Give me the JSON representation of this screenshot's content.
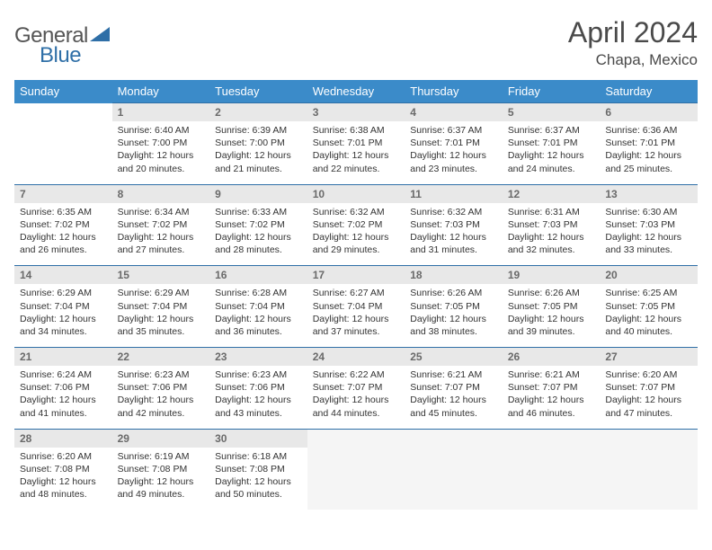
{
  "logo": {
    "part1": "General",
    "part2": "Blue"
  },
  "title": "April 2024",
  "location": "Chapa, Mexico",
  "colors": {
    "header_bg": "#3b8bc9",
    "header_text": "#ffffff",
    "daynum_bg": "#e8e8e8",
    "daynum_text": "#6a6a6a",
    "rule": "#2f6fa7",
    "brand_blue": "#2f6fa7"
  },
  "weekdays": [
    "Sunday",
    "Monday",
    "Tuesday",
    "Wednesday",
    "Thursday",
    "Friday",
    "Saturday"
  ],
  "weeks": [
    [
      null,
      {
        "n": "1",
        "sr": "6:40 AM",
        "ss": "7:00 PM",
        "dl": "12 hours and 20 minutes."
      },
      {
        "n": "2",
        "sr": "6:39 AM",
        "ss": "7:00 PM",
        "dl": "12 hours and 21 minutes."
      },
      {
        "n": "3",
        "sr": "6:38 AM",
        "ss": "7:01 PM",
        "dl": "12 hours and 22 minutes."
      },
      {
        "n": "4",
        "sr": "6:37 AM",
        "ss": "7:01 PM",
        "dl": "12 hours and 23 minutes."
      },
      {
        "n": "5",
        "sr": "6:37 AM",
        "ss": "7:01 PM",
        "dl": "12 hours and 24 minutes."
      },
      {
        "n": "6",
        "sr": "6:36 AM",
        "ss": "7:01 PM",
        "dl": "12 hours and 25 minutes."
      }
    ],
    [
      {
        "n": "7",
        "sr": "6:35 AM",
        "ss": "7:02 PM",
        "dl": "12 hours and 26 minutes."
      },
      {
        "n": "8",
        "sr": "6:34 AM",
        "ss": "7:02 PM",
        "dl": "12 hours and 27 minutes."
      },
      {
        "n": "9",
        "sr": "6:33 AM",
        "ss": "7:02 PM",
        "dl": "12 hours and 28 minutes."
      },
      {
        "n": "10",
        "sr": "6:32 AM",
        "ss": "7:02 PM",
        "dl": "12 hours and 29 minutes."
      },
      {
        "n": "11",
        "sr": "6:32 AM",
        "ss": "7:03 PM",
        "dl": "12 hours and 31 minutes."
      },
      {
        "n": "12",
        "sr": "6:31 AM",
        "ss": "7:03 PM",
        "dl": "12 hours and 32 minutes."
      },
      {
        "n": "13",
        "sr": "6:30 AM",
        "ss": "7:03 PM",
        "dl": "12 hours and 33 minutes."
      }
    ],
    [
      {
        "n": "14",
        "sr": "6:29 AM",
        "ss": "7:04 PM",
        "dl": "12 hours and 34 minutes."
      },
      {
        "n": "15",
        "sr": "6:29 AM",
        "ss": "7:04 PM",
        "dl": "12 hours and 35 minutes."
      },
      {
        "n": "16",
        "sr": "6:28 AM",
        "ss": "7:04 PM",
        "dl": "12 hours and 36 minutes."
      },
      {
        "n": "17",
        "sr": "6:27 AM",
        "ss": "7:04 PM",
        "dl": "12 hours and 37 minutes."
      },
      {
        "n": "18",
        "sr": "6:26 AM",
        "ss": "7:05 PM",
        "dl": "12 hours and 38 minutes."
      },
      {
        "n": "19",
        "sr": "6:26 AM",
        "ss": "7:05 PM",
        "dl": "12 hours and 39 minutes."
      },
      {
        "n": "20",
        "sr": "6:25 AM",
        "ss": "7:05 PM",
        "dl": "12 hours and 40 minutes."
      }
    ],
    [
      {
        "n": "21",
        "sr": "6:24 AM",
        "ss": "7:06 PM",
        "dl": "12 hours and 41 minutes."
      },
      {
        "n": "22",
        "sr": "6:23 AM",
        "ss": "7:06 PM",
        "dl": "12 hours and 42 minutes."
      },
      {
        "n": "23",
        "sr": "6:23 AM",
        "ss": "7:06 PM",
        "dl": "12 hours and 43 minutes."
      },
      {
        "n": "24",
        "sr": "6:22 AM",
        "ss": "7:07 PM",
        "dl": "12 hours and 44 minutes."
      },
      {
        "n": "25",
        "sr": "6:21 AM",
        "ss": "7:07 PM",
        "dl": "12 hours and 45 minutes."
      },
      {
        "n": "26",
        "sr": "6:21 AM",
        "ss": "7:07 PM",
        "dl": "12 hours and 46 minutes."
      },
      {
        "n": "27",
        "sr": "6:20 AM",
        "ss": "7:07 PM",
        "dl": "12 hours and 47 minutes."
      }
    ],
    [
      {
        "n": "28",
        "sr": "6:20 AM",
        "ss": "7:08 PM",
        "dl": "12 hours and 48 minutes."
      },
      {
        "n": "29",
        "sr": "6:19 AM",
        "ss": "7:08 PM",
        "dl": "12 hours and 49 minutes."
      },
      {
        "n": "30",
        "sr": "6:18 AM",
        "ss": "7:08 PM",
        "dl": "12 hours and 50 minutes."
      },
      null,
      null,
      null,
      null
    ]
  ],
  "labels": {
    "sunrise": "Sunrise:",
    "sunset": "Sunset:",
    "daylight": "Daylight:"
  }
}
